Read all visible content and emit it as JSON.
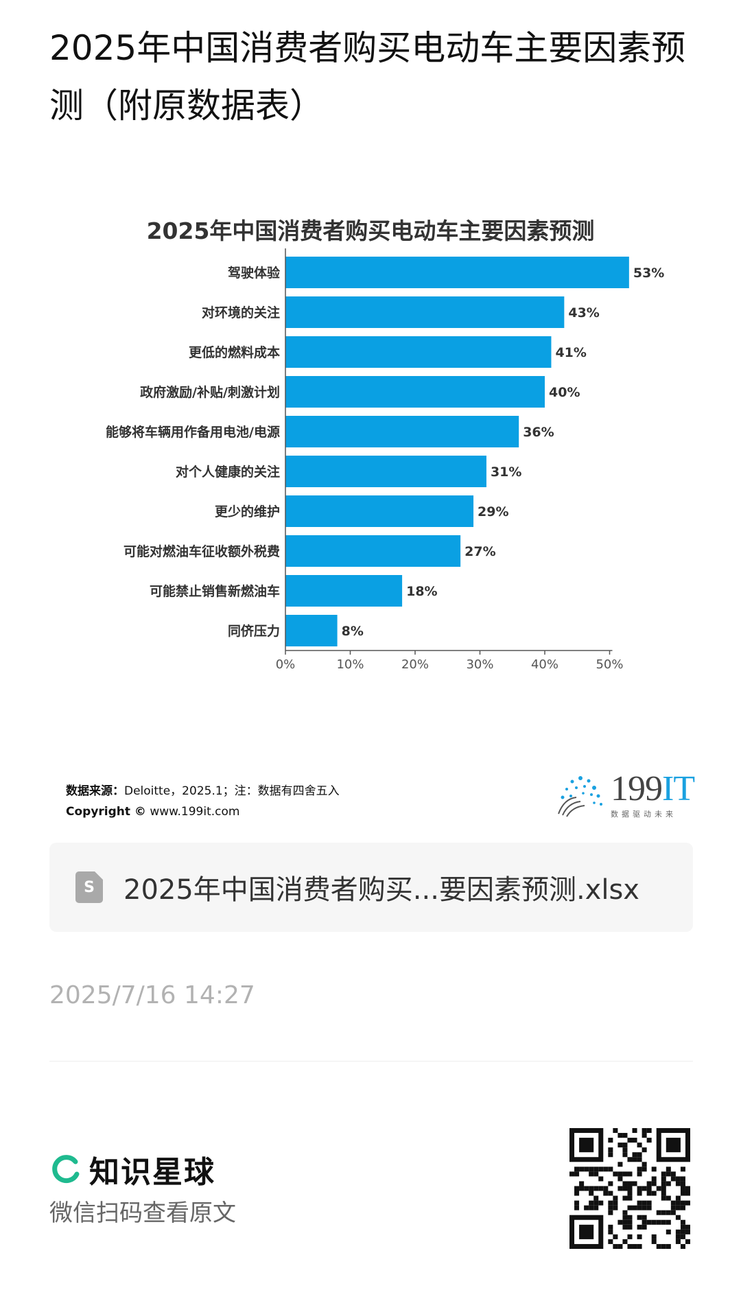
{
  "page": {
    "title": "2025年中国消费者购买电动车主要因素预测（附原数据表）"
  },
  "chart_data": {
    "type": "bar",
    "orientation": "horizontal",
    "title": "2025年中国消费者购买电动车主要因素预测",
    "categories": [
      "驾驶体验",
      "对环境的关注",
      "更低的燃料成本",
      "政府激励/补贴/刺激计划",
      "能够将车辆用作备用电池/电源",
      "对个人健康的关注",
      "更少的维护",
      "可能对燃油车征收额外税费",
      "可能禁止销售新燃油车",
      "同侪压力"
    ],
    "values": [
      53,
      43,
      41,
      40,
      36,
      31,
      29,
      27,
      18,
      8
    ],
    "value_labels": [
      "53%",
      "43%",
      "41%",
      "40%",
      "36%",
      "31%",
      "29%",
      "27%",
      "18%",
      "8%"
    ],
    "x_ticks": [
      "0%",
      "10%",
      "20%",
      "30%",
      "40%",
      "50%"
    ],
    "xlim": [
      0,
      53
    ],
    "bar_color": "#0aa0e3",
    "grid": false
  },
  "source": {
    "label": "数据来源：",
    "text": "Deloitte，2025.1；注：数据有四舍五入",
    "copyright_label": "Copyright ©",
    "copyright_site": "www.199it.com"
  },
  "logo": {
    "number": "199",
    "suffix": "IT",
    "tagline": "数据驱动未来"
  },
  "file": {
    "icon": "spreadsheet-file-icon",
    "icon_letter": "S",
    "name": "2025年中国消费者购买...要因素预测.xlsx"
  },
  "timestamp": "2025/7/16 14:27",
  "footer": {
    "brand_name": "知识星球",
    "scan_text": "微信扫码查看原文",
    "brand_color": "#1fba8f"
  }
}
